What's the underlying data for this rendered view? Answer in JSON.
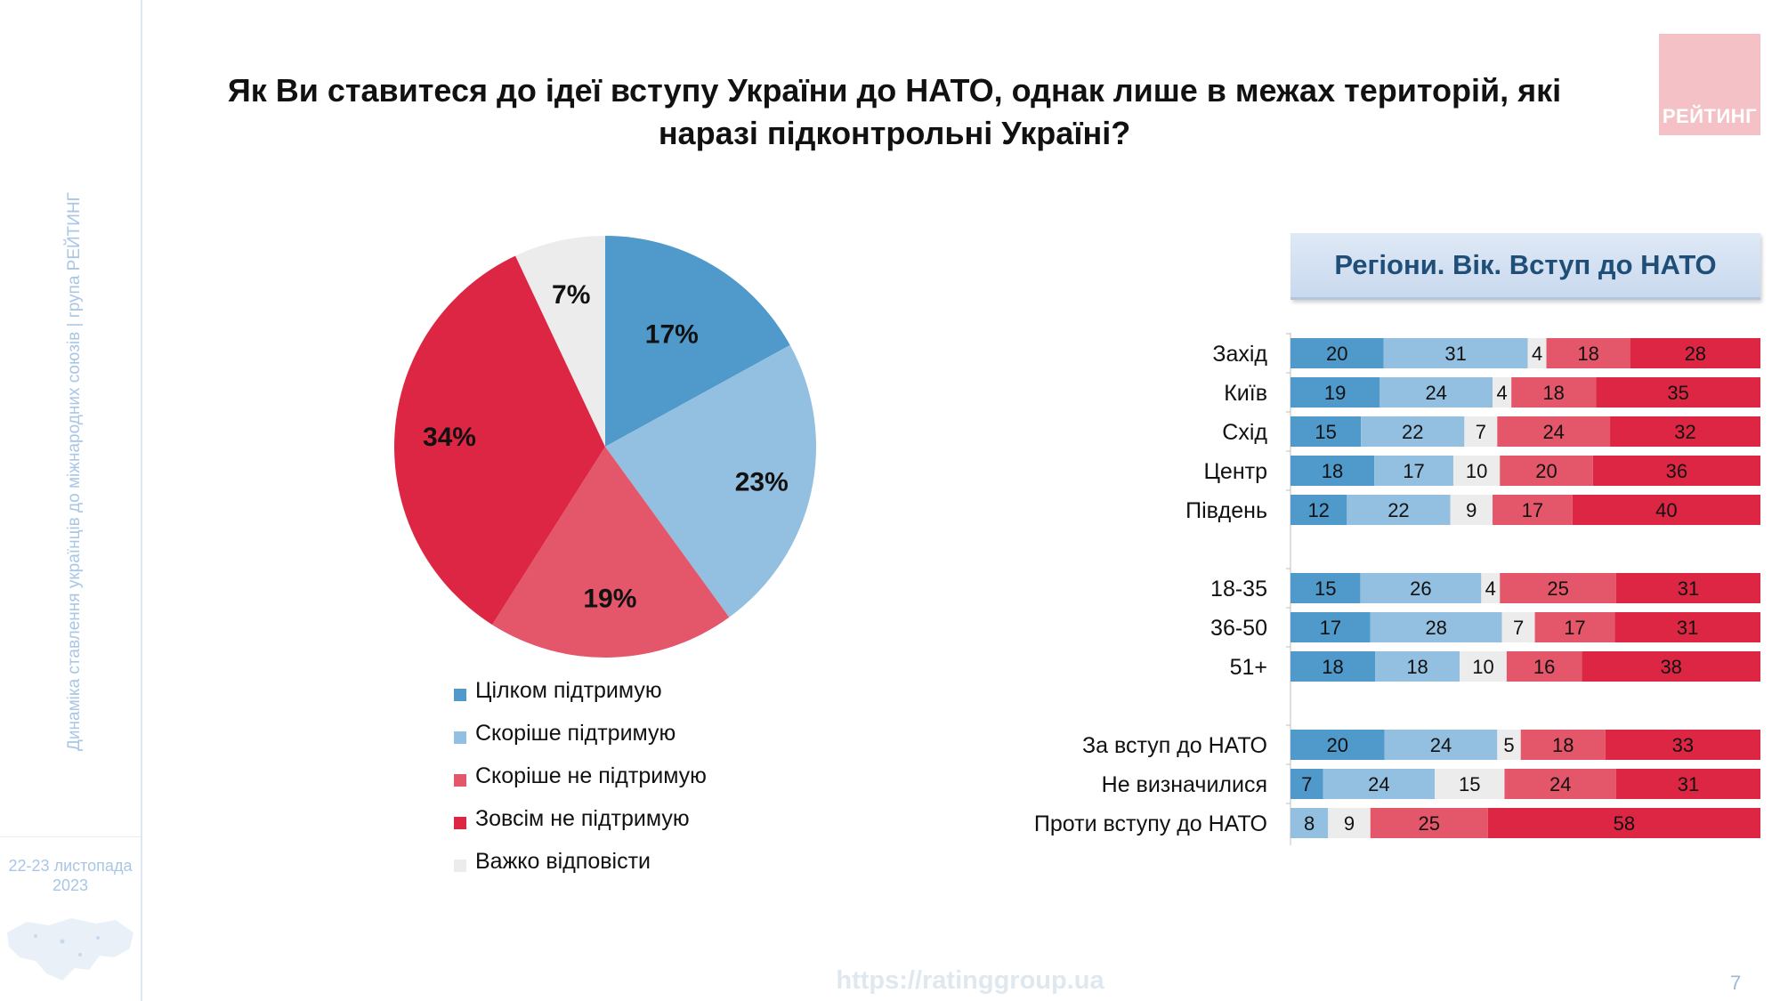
{
  "sidebar": {
    "vertical_text": "Динаміка ставлення українців до міжнародних союзів | група РЕЙТИНГ",
    "date_line1": "22-23 листопада",
    "date_line2": "2023"
  },
  "title": "Як Ви ставитеся до ідеї вступу України до НАТО, однак лише в межах територій, які наразі підконтрольні Україні?",
  "logo_text": "РЕЙТИНГ",
  "footer": {
    "url": "https://ratinggroup.ua",
    "page_number": "7"
  },
  "colors": {
    "fully_support": "#4f9acb",
    "rather_support": "#93c0e0",
    "hard_to_say": "#ececec",
    "rather_not": "#e4576a",
    "not_at_all": "#dd2644"
  },
  "chart_data": [
    {
      "type": "pie",
      "categories": [
        "Цілком підтримую",
        "Скоріше підтримую",
        "Скоріше не підтримую",
        "Зовсім не підтримую",
        "Важко відповісти"
      ],
      "values": [
        17,
        23,
        19,
        34,
        7
      ],
      "value_labels": [
        "17%",
        "23%",
        "19%",
        "34%",
        "7%"
      ],
      "legend": "below"
    },
    {
      "type": "bar",
      "orientation": "horizontal-stacked",
      "title": "Регіони. Вік. Вступ до НАТО",
      "categories": [
        "Захід",
        "Київ",
        "Схід",
        "Центр",
        "Південь",
        "18-35",
        "36-50",
        "51+",
        "За вступ до НАТО",
        "Не визначилися",
        "Проти вступу до НАТО"
      ],
      "groups": [
        [
          0,
          1,
          2,
          3,
          4
        ],
        [
          5,
          6,
          7
        ],
        [
          8,
          9,
          10
        ]
      ],
      "series": [
        {
          "key": "fully_support",
          "values": [
            20,
            19,
            15,
            18,
            12,
            15,
            17,
            18,
            20,
            7,
            null
          ]
        },
        {
          "key": "rather_support",
          "values": [
            31,
            24,
            22,
            17,
            22,
            26,
            28,
            18,
            24,
            24,
            8
          ]
        },
        {
          "key": "hard_to_say",
          "values": [
            4,
            4,
            7,
            10,
            9,
            4,
            7,
            10,
            5,
            15,
            9
          ]
        },
        {
          "key": "rather_not",
          "values": [
            18,
            18,
            24,
            20,
            17,
            25,
            17,
            16,
            18,
            24,
            25
          ]
        },
        {
          "key": "not_at_all",
          "values": [
            28,
            35,
            32,
            36,
            40,
            31,
            31,
            38,
            33,
            31,
            58
          ]
        }
      ]
    }
  ]
}
